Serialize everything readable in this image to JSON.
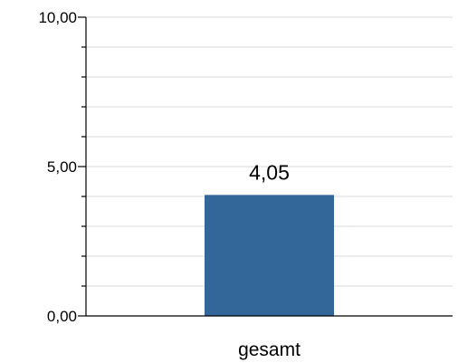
{
  "chart_data": {
    "type": "bar",
    "categories": [
      "gesamt"
    ],
    "values": [
      4.05
    ],
    "value_labels": [
      "4,05"
    ],
    "title": "",
    "xlabel": "",
    "ylabel": "",
    "ylim": [
      0,
      10
    ],
    "major_ticks": [
      0,
      5,
      10
    ],
    "major_tick_labels": [
      "0,00",
      "5,00",
      "10,00"
    ],
    "minor_tick_step": 1,
    "grid": true,
    "colors": {
      "bar": "#336699",
      "grid": "#d9d9d9",
      "axis": "#000000"
    }
  }
}
